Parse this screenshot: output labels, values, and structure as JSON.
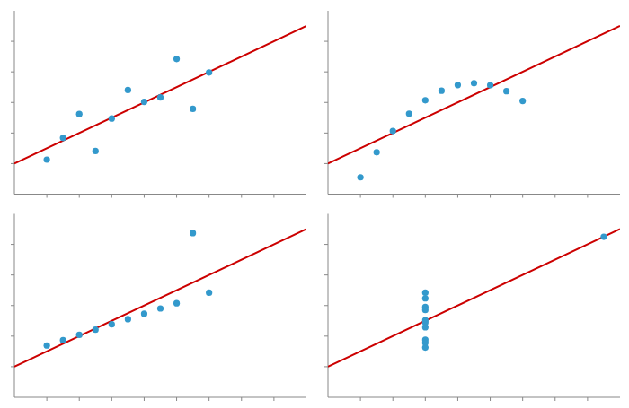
{
  "chart_data": [
    {
      "type": "scatter",
      "xlim": [
        2,
        20
      ],
      "ylim": [
        2,
        14
      ],
      "xticks": [
        4,
        6,
        8,
        10,
        12,
        14,
        16,
        18
      ],
      "yticks": [
        4,
        6,
        8,
        10,
        12
      ],
      "grid": false,
      "tick_labels": false,
      "series": [
        {
          "type": "line",
          "color": "#CC0000",
          "x": [
            2,
            20
          ],
          "values": [
            4.0003,
            13.0021
          ]
        },
        {
          "type": "scatter",
          "color": "#3399CC",
          "marker": "circle",
          "x": [
            10,
            8,
            13,
            9,
            11,
            14,
            6,
            4,
            12,
            7,
            5
          ],
          "values": [
            8.04,
            6.95,
            7.58,
            8.81,
            8.33,
            9.96,
            7.24,
            4.26,
            10.84,
            4.82,
            5.68
          ]
        }
      ]
    },
    {
      "type": "scatter",
      "xlim": [
        2,
        20
      ],
      "ylim": [
        2,
        14
      ],
      "xticks": [
        4,
        6,
        8,
        10,
        12,
        14,
        16,
        18
      ],
      "yticks": [
        4,
        6,
        8,
        10,
        12
      ],
      "grid": false,
      "tick_labels": false,
      "series": [
        {
          "type": "line",
          "color": "#CC0000",
          "x": [
            2,
            20
          ],
          "values": [
            4.0003,
            13.0021
          ]
        },
        {
          "type": "scatter",
          "color": "#3399CC",
          "marker": "circle",
          "x": [
            10,
            8,
            13,
            9,
            11,
            14,
            6,
            4,
            12,
            7,
            5
          ],
          "values": [
            9.14,
            8.14,
            8.74,
            8.77,
            9.26,
            8.1,
            6.13,
            3.1,
            9.13,
            7.26,
            4.74
          ]
        }
      ]
    },
    {
      "type": "scatter",
      "xlim": [
        2,
        20
      ],
      "ylim": [
        2,
        14
      ],
      "xticks": [
        4,
        6,
        8,
        10,
        12,
        14,
        16,
        18
      ],
      "yticks": [
        4,
        6,
        8,
        10,
        12
      ],
      "grid": false,
      "tick_labels": false,
      "series": [
        {
          "type": "line",
          "color": "#CC0000",
          "x": [
            2,
            20
          ],
          "values": [
            4.0003,
            13.0021
          ]
        },
        {
          "type": "scatter",
          "color": "#3399CC",
          "marker": "circle",
          "x": [
            10,
            8,
            13,
            9,
            11,
            14,
            6,
            4,
            12,
            7,
            5
          ],
          "values": [
            7.46,
            6.77,
            12.74,
            7.11,
            7.81,
            8.84,
            6.08,
            5.39,
            8.15,
            6.42,
            5.73
          ]
        }
      ]
    },
    {
      "type": "scatter",
      "xlim": [
        2,
        20
      ],
      "ylim": [
        2,
        14
      ],
      "xticks": [
        4,
        6,
        8,
        10,
        12,
        14,
        16,
        18
      ],
      "yticks": [
        4,
        6,
        8,
        10,
        12
      ],
      "grid": false,
      "tick_labels": false,
      "series": [
        {
          "type": "line",
          "color": "#CC0000",
          "x": [
            2,
            20
          ],
          "values": [
            4.0003,
            13.0021
          ]
        },
        {
          "type": "scatter",
          "color": "#3399CC",
          "marker": "circle",
          "x": [
            8,
            8,
            8,
            8,
            8,
            8,
            8,
            19,
            8,
            8,
            8
          ],
          "values": [
            6.58,
            5.76,
            7.71,
            8.84,
            8.47,
            7.04,
            5.25,
            12.5,
            5.56,
            7.91,
            6.89
          ]
        }
      ]
    }
  ]
}
